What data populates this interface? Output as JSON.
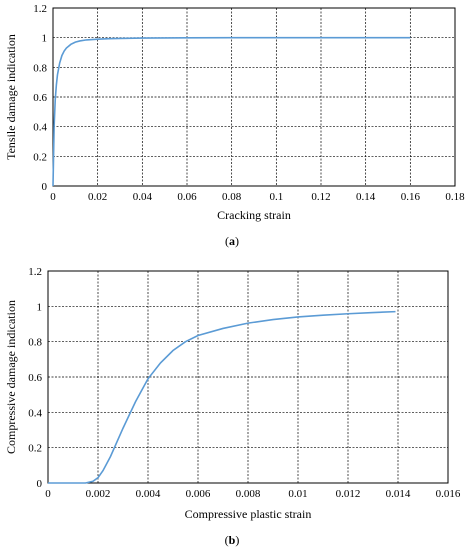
{
  "chart_data": [
    {
      "type": "line",
      "panel_label": {
        "open": "(",
        "letter": "a",
        "close": ")"
      },
      "title": "",
      "xlabel": "Cracking strain",
      "ylabel": "Tensile  damage indication",
      "xlim": [
        0,
        0.18
      ],
      "ylim": [
        0,
        1.2
      ],
      "xticks": [
        0,
        0.02,
        0.04,
        0.06,
        0.08,
        0.1,
        0.12,
        0.14,
        0.16,
        0.18
      ],
      "xtick_labels": [
        "0",
        "0.02",
        "0.04",
        "0.06",
        "0.08",
        "0.1",
        "0.12",
        "0.14",
        "0.16",
        "0.18"
      ],
      "yticks": [
        0,
        0.2,
        0.4,
        0.6,
        0.8,
        1,
        1.2
      ],
      "ytick_labels": [
        "0",
        "0.2",
        "0.4",
        "0.6",
        "0.8",
        "1",
        "1.2"
      ],
      "grid": true,
      "line_color": "#5b9bd5",
      "series": [
        {
          "x": [
            0,
            0.0005,
            0.001,
            0.0015,
            0.002,
            0.003,
            0.004,
            0.005,
            0.006,
            0.008,
            0.01,
            0.012,
            0.015,
            0.02,
            0.025,
            0.03,
            0.04,
            0.05,
            0.06,
            0.08,
            0.1,
            0.12,
            0.14,
            0.16
          ],
          "values": [
            0,
            0.4,
            0.58,
            0.68,
            0.75,
            0.83,
            0.88,
            0.91,
            0.93,
            0.955,
            0.97,
            0.978,
            0.985,
            0.99,
            0.993,
            0.995,
            0.997,
            0.998,
            0.999,
            1,
            1,
            1,
            1,
            1
          ]
        }
      ]
    },
    {
      "type": "line",
      "panel_label": {
        "open": "(",
        "letter": "b",
        "close": ")"
      },
      "title": "",
      "xlabel": "Compressive plastic strain",
      "ylabel": "Compressive damage indication",
      "xlim": [
        0,
        0.016
      ],
      "ylim": [
        0,
        1.2
      ],
      "xticks": [
        0,
        0.002,
        0.004,
        0.006,
        0.008,
        0.01,
        0.012,
        0.014,
        0.016
      ],
      "xtick_labels": [
        "0",
        "0.002",
        "0.004",
        "0.006",
        "0.008",
        "0.01",
        "0.012",
        "0.014",
        "0.016"
      ],
      "yticks": [
        0,
        0.2,
        0.4,
        0.6,
        0.8,
        1,
        1.2
      ],
      "ytick_labels": [
        "0",
        "0.2",
        "0.4",
        "0.6",
        "0.8",
        "1",
        "1.2"
      ],
      "grid": true,
      "line_color": "#5b9bd5",
      "series": [
        {
          "x": [
            0,
            0.0015,
            0.0018,
            0.002,
            0.0022,
            0.0025,
            0.003,
            0.0035,
            0.004,
            0.0045,
            0.005,
            0.0055,
            0.006,
            0.007,
            0.008,
            0.009,
            0.01,
            0.011,
            0.012,
            0.013,
            0.0139
          ],
          "values": [
            0,
            0,
            0.01,
            0.03,
            0.07,
            0.15,
            0.31,
            0.46,
            0.59,
            0.68,
            0.75,
            0.8,
            0.835,
            0.875,
            0.905,
            0.925,
            0.94,
            0.95,
            0.958,
            0.965,
            0.97
          ]
        }
      ]
    }
  ]
}
